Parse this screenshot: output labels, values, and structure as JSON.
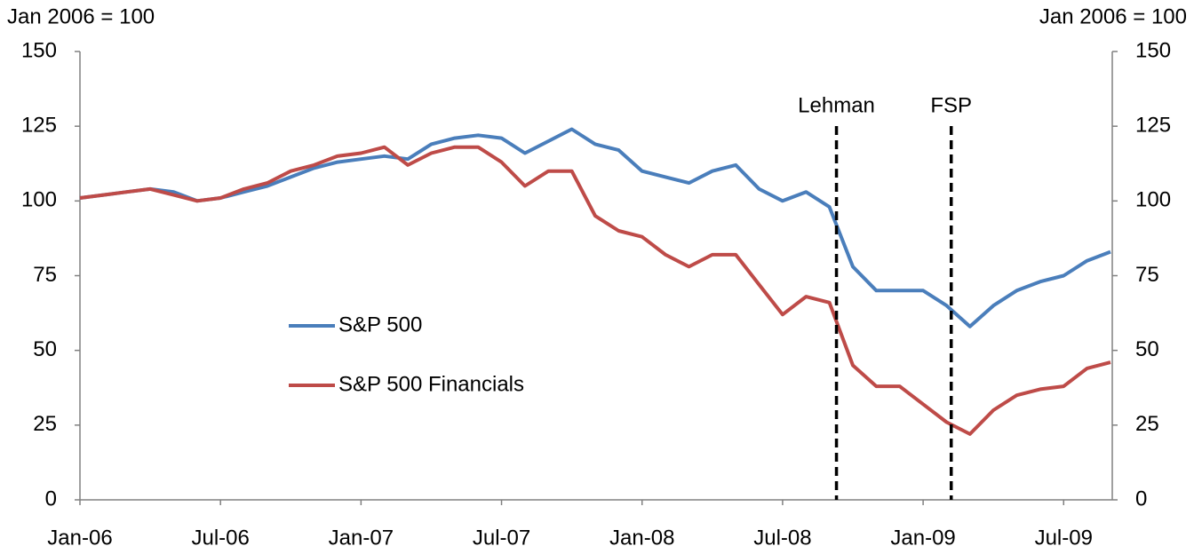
{
  "chart_data": {
    "type": "line",
    "y_label": "Jan 2006 = 100",
    "y2_label": "Jan 2006 = 100",
    "categories": [
      "Jan-06",
      null,
      null,
      null,
      null,
      null,
      "Jul-06",
      null,
      null,
      null,
      null,
      null,
      "Jan-07",
      null,
      null,
      null,
      null,
      null,
      "Jul-07",
      null,
      null,
      null,
      null,
      null,
      "Jan-08",
      null,
      null,
      null,
      null,
      null,
      "Jul-08",
      null,
      null,
      null,
      null,
      null,
      "Jan-09",
      null,
      null,
      null,
      null,
      null,
      "Jul-09",
      null,
      null
    ],
    "series": [
      {
        "name": "S&P 500",
        "color": "#4a7ebb",
        "values": [
          101,
          102,
          103,
          104,
          103,
          100,
          101,
          103,
          105,
          108,
          111,
          113,
          114,
          115,
          114,
          119,
          121,
          122,
          121,
          116,
          120,
          124,
          119,
          117,
          110,
          108,
          106,
          110,
          112,
          104,
          100,
          103,
          98,
          78,
          70,
          70,
          70,
          65,
          58,
          65,
          70,
          73,
          75,
          80,
          83
        ]
      },
      {
        "name": "S&P 500 Financials",
        "color": "#be4b48",
        "values": [
          101,
          102,
          103,
          104,
          102,
          100,
          101,
          104,
          106,
          110,
          112,
          115,
          116,
          118,
          112,
          116,
          118,
          118,
          113,
          105,
          110,
          110,
          95,
          90,
          88,
          82,
          78,
          82,
          82,
          72,
          62,
          68,
          66,
          45,
          38,
          38,
          32,
          26,
          22,
          30,
          35,
          37,
          38,
          44,
          46
        ]
      }
    ],
    "annotations": [
      {
        "text": "Lehman",
        "x": 32.3
      },
      {
        "text": "FSP",
        "x": 37.2
      }
    ],
    "ylim": [
      0,
      150
    ],
    "yticks": [
      0,
      25,
      50,
      75,
      100,
      125,
      150
    ],
    "y2lim": [
      0,
      150
    ],
    "y2ticks": [
      0,
      25,
      50,
      75,
      100,
      125,
      150
    ],
    "grid": false,
    "legend": "center-left"
  }
}
